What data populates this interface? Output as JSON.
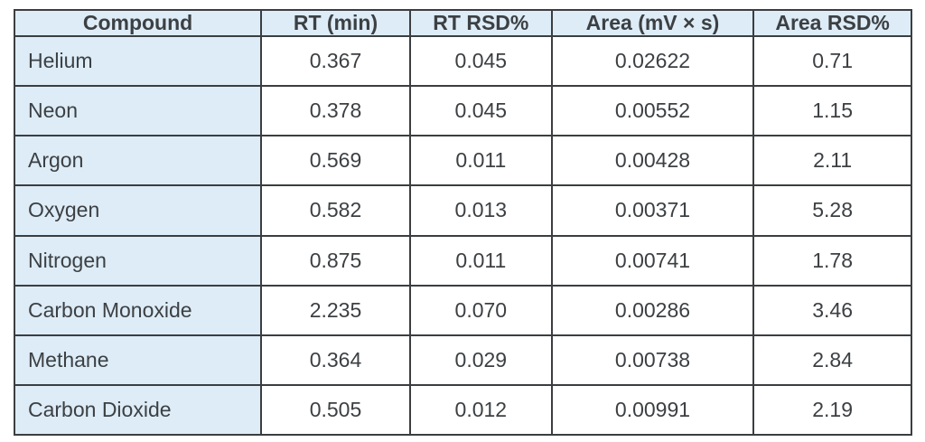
{
  "colors": {
    "header_bg": "#ddecf7",
    "label_col_bg": "#ddecf7",
    "border": "#3b3e41",
    "text": "#3c4043",
    "cell_bg": "#ffffff"
  },
  "table": {
    "columns": [
      {
        "label": "Compound",
        "align": "left"
      },
      {
        "label": "RT (min)",
        "align": "center"
      },
      {
        "label": "RT RSD%",
        "align": "center"
      },
      {
        "label": "Area (mV × s)",
        "align": "center"
      },
      {
        "label": "Area RSD%",
        "align": "center"
      }
    ],
    "rows": [
      [
        "Helium",
        "0.367",
        "0.045",
        "0.02622",
        "0.71"
      ],
      [
        "Neon",
        "0.378",
        "0.045",
        "0.00552",
        "1.15"
      ],
      [
        "Argon",
        "0.569",
        "0.011",
        "0.00428",
        "2.11"
      ],
      [
        "Oxygen",
        "0.582",
        "0.013",
        "0.00371",
        "5.28"
      ],
      [
        "Nitrogen",
        "0.875",
        "0.011",
        "0.00741",
        "1.78"
      ],
      [
        "Carbon Monoxide",
        "2.235",
        "0.070",
        "0.00286",
        "3.46"
      ],
      [
        "Methane",
        "0.364",
        "0.029",
        "0.00738",
        "2.84"
      ],
      [
        "Carbon Dioxide",
        "0.505",
        "0.012",
        "0.00991",
        "2.19"
      ]
    ]
  },
  "chart_data": {
    "type": "table",
    "title": "",
    "columns": [
      "Compound",
      "RT (min)",
      "RT RSD%",
      "Area (mV × s)",
      "Area RSD%"
    ],
    "categories": [
      "Helium",
      "Neon",
      "Argon",
      "Oxygen",
      "Nitrogen",
      "Carbon Monoxide",
      "Methane",
      "Carbon Dioxide"
    ],
    "series": [
      {
        "name": "RT (min)",
        "values": [
          0.367,
          0.378,
          0.569,
          0.582,
          0.875,
          2.235,
          0.364,
          0.505
        ]
      },
      {
        "name": "RT RSD%",
        "values": [
          0.045,
          0.045,
          0.011,
          0.013,
          0.011,
          0.07,
          0.029,
          0.012
        ]
      },
      {
        "name": "Area (mV × s)",
        "values": [
          0.02622,
          0.00552,
          0.00428,
          0.00371,
          0.00741,
          0.00286,
          0.00738,
          0.00991
        ]
      },
      {
        "name": "Area RSD%",
        "values": [
          0.71,
          1.15,
          2.11,
          5.28,
          1.78,
          3.46,
          2.84,
          2.19
        ]
      }
    ]
  }
}
